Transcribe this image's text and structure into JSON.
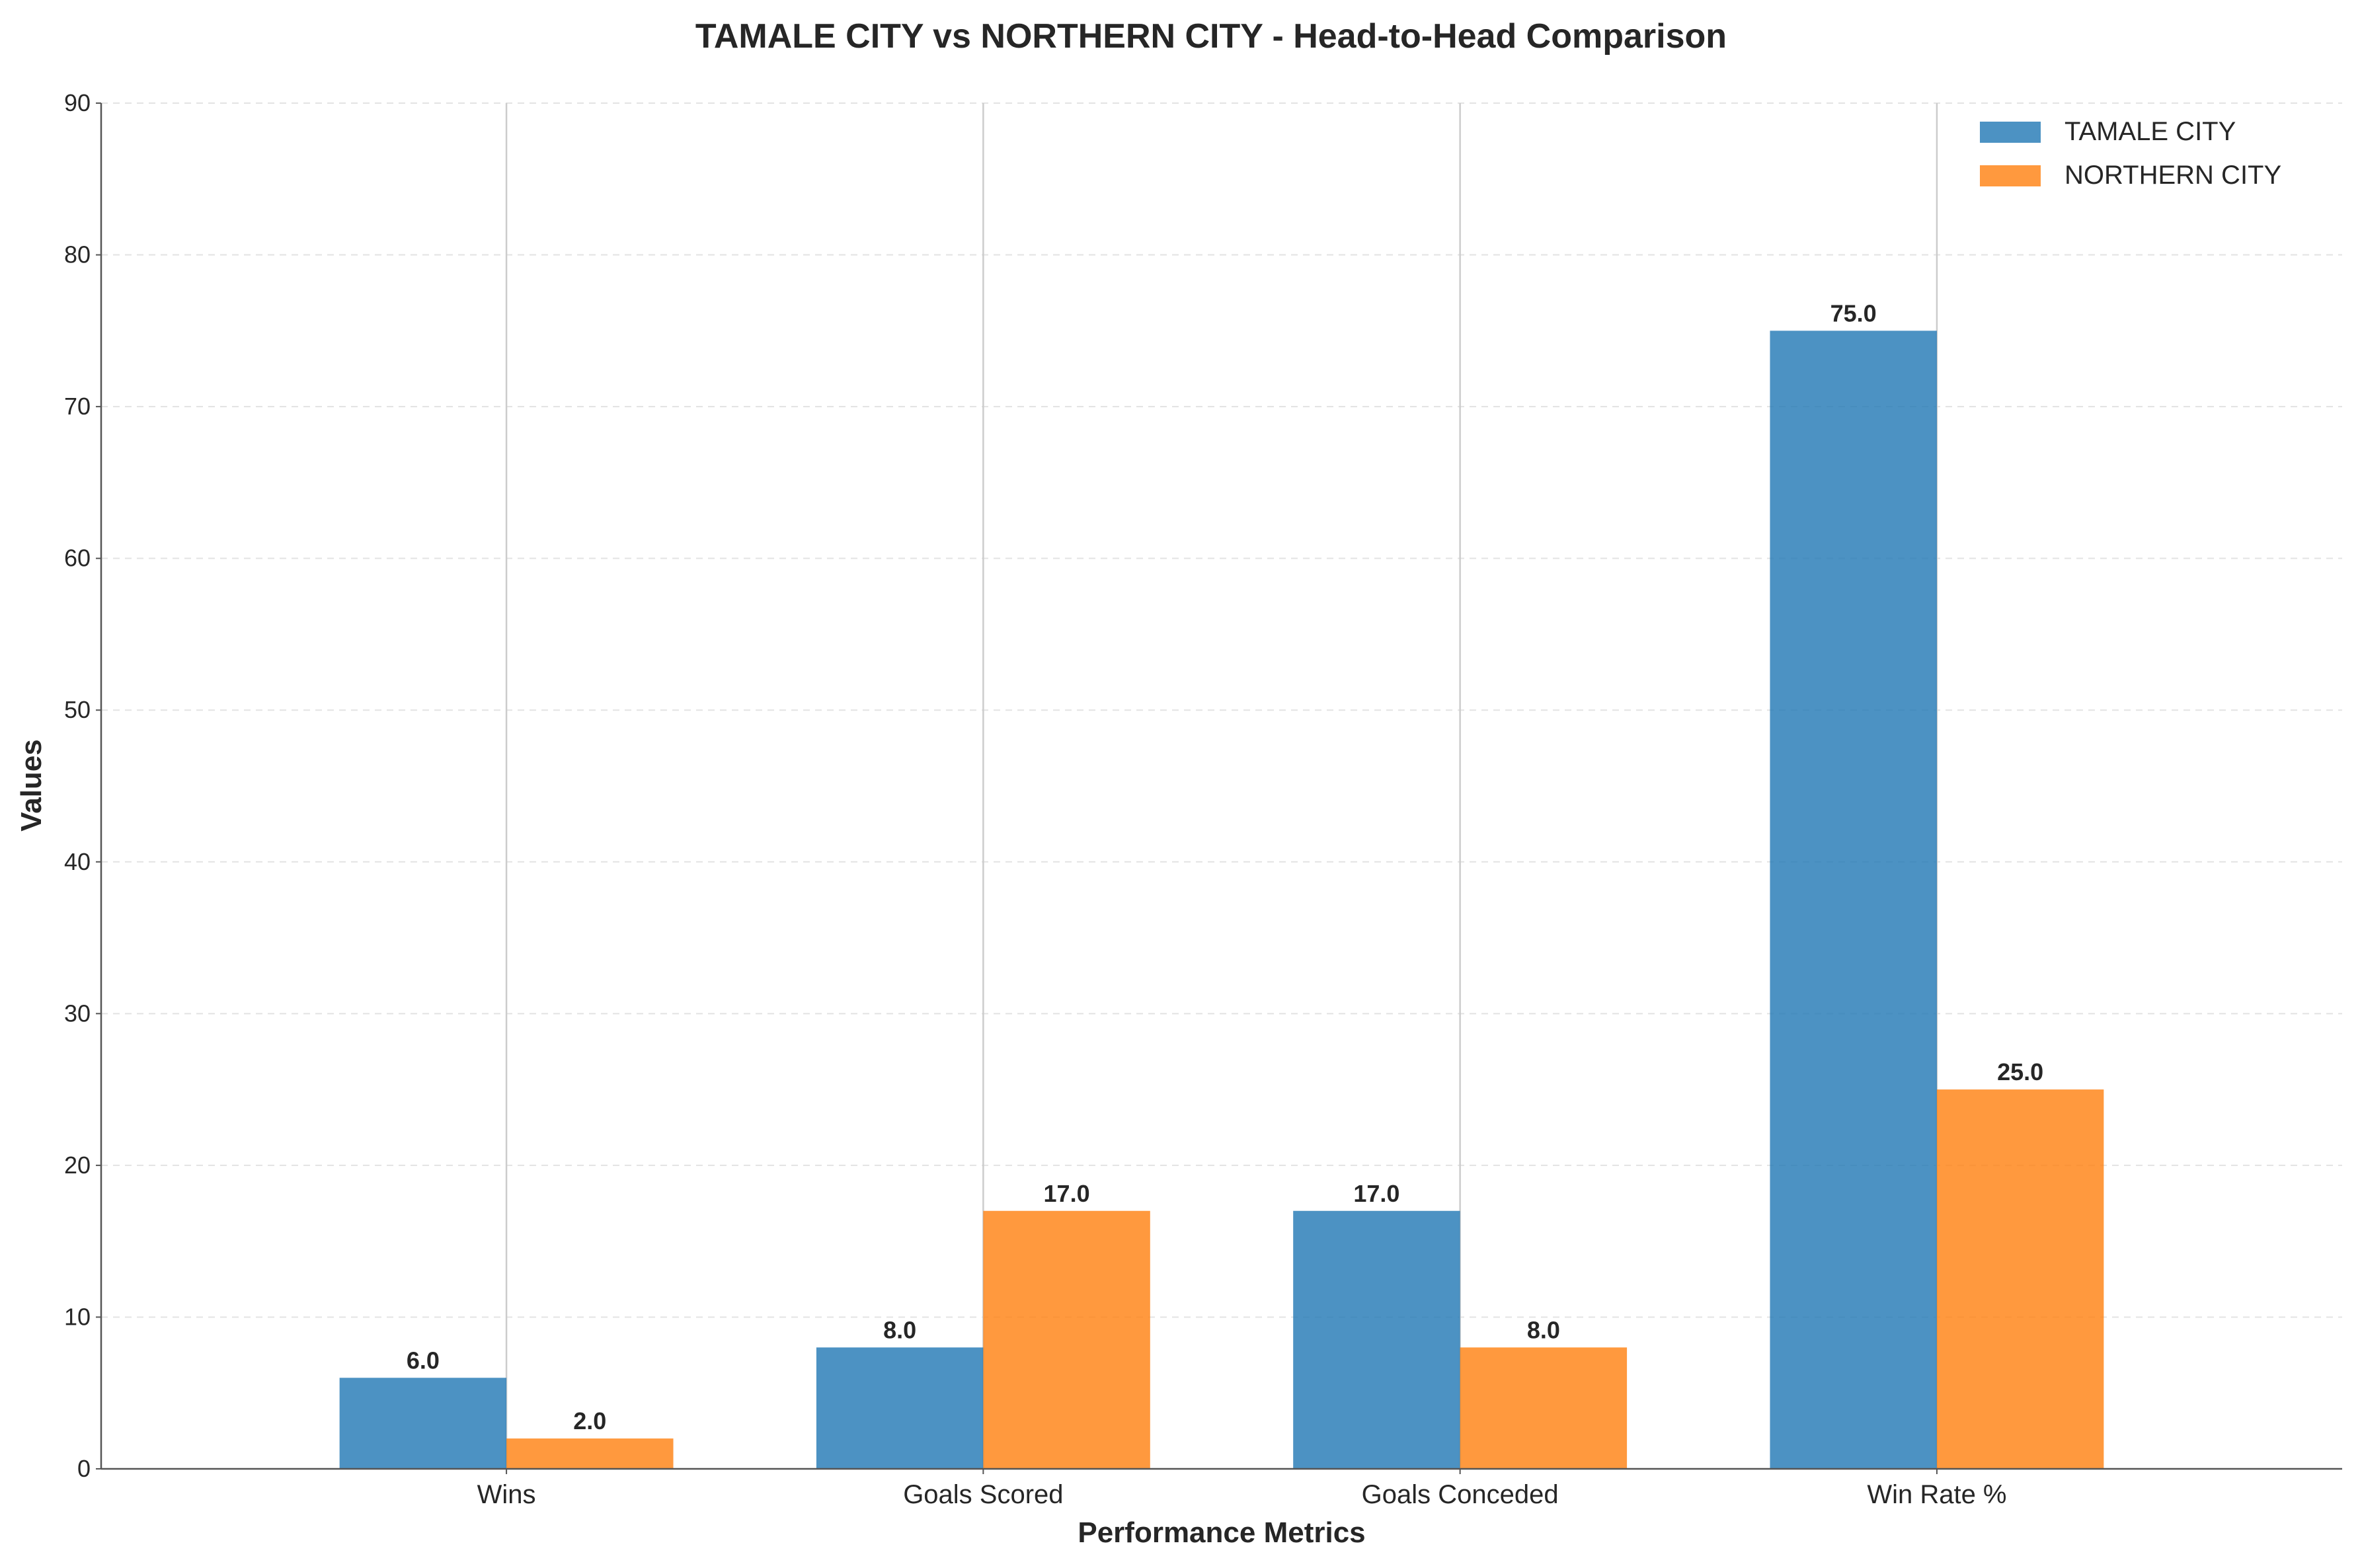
{
  "chart_data": {
    "type": "bar",
    "title": "TAMALE CITY vs NORTHERN CITY - Head-to-Head Comparison",
    "xlabel": "Performance Metrics",
    "ylabel": "Values",
    "categories": [
      "Wins",
      "Goals Scored",
      "Goals Conceded",
      "Win Rate %"
    ],
    "series": [
      {
        "name": "TAMALE CITY",
        "values": [
          6.0,
          8.0,
          17.0,
          75.0
        ],
        "color": "#1f77b4"
      },
      {
        "name": "NORTHERN CITY",
        "values": [
          2.0,
          17.0,
          8.0,
          25.0
        ],
        "color": "#ff7f0e"
      }
    ],
    "value_labels": [
      [
        "6.0",
        "8.0",
        "17.0",
        "75.0"
      ],
      [
        "2.0",
        "17.0",
        "8.0",
        "25.0"
      ]
    ],
    "ylim": [
      0,
      90
    ],
    "yticks": [
      "0",
      "10",
      "20",
      "30",
      "40",
      "50",
      "60",
      "70",
      "80",
      "90"
    ],
    "grid": true,
    "grid_axis": "y",
    "legend_position": "top-right"
  }
}
